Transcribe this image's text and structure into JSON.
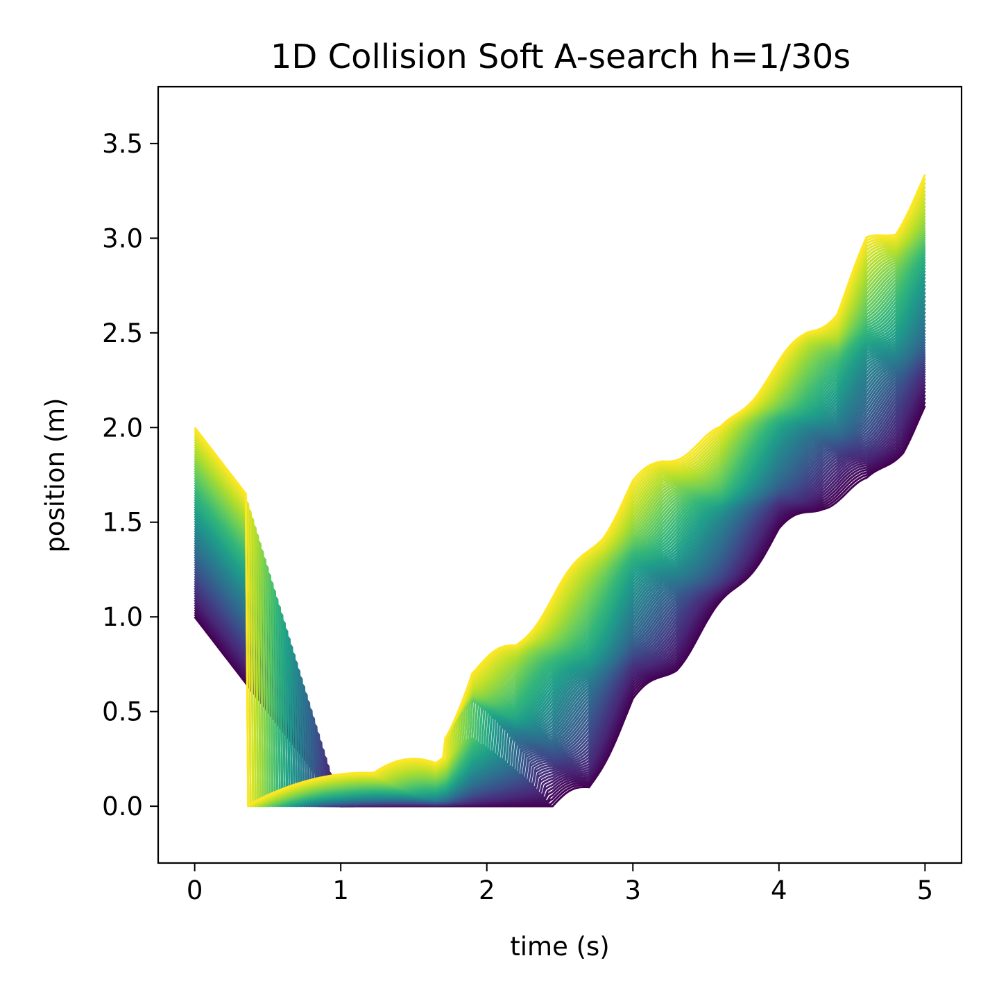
{
  "chart_data": {
    "type": "line",
    "title": "1D Collision Soft A-search h=1/30s",
    "xlabel": "time (s)",
    "ylabel": "position (m)",
    "xlim": [
      -0.25,
      5.25
    ],
    "ylim": [
      -0.3,
      3.8
    ],
    "xticks": [
      0,
      1,
      2,
      3,
      4,
      5
    ],
    "xtick_labels": [
      "0",
      "1",
      "2",
      "3",
      "4",
      "5"
    ],
    "yticks": [
      0.0,
      0.5,
      1.0,
      1.5,
      2.0,
      2.5,
      3.0,
      3.5
    ],
    "ytick_labels": [
      "0.0",
      "0.5",
      "1.0",
      "1.5",
      "2.0",
      "2.5",
      "3.0",
      "3.5"
    ],
    "grid": false,
    "legend": "none",
    "colormap": "viridis",
    "colormap_stops": [
      "#440154",
      "#482878",
      "#3e4989",
      "#31688e",
      "#26828e",
      "#1f9e89",
      "#35b779",
      "#6ece58",
      "#b5de2b",
      "#fde725"
    ],
    "series_count": 80,
    "series_summary": {
      "initial_position_range": [
        1.0,
        2.0
      ],
      "initial_velocity": -1.0,
      "lowest_series": {
        "x": [
          0,
          1.0,
          2.45,
          2.7,
          3.0,
          3.3,
          3.6,
          4.0,
          4.3,
          4.6,
          4.85,
          5.0
        ],
        "y": [
          1.0,
          0.0,
          0.0,
          0.1,
          0.55,
          0.75,
          1.05,
          1.45,
          1.6,
          1.7,
          1.9,
          2.1
        ]
      },
      "highest_series": {
        "x": [
          0,
          1.65,
          1.72,
          1.9,
          2.2,
          2.5,
          2.8,
          3.0,
          3.2,
          3.4,
          3.6,
          3.9,
          4.2,
          4.4,
          4.6,
          4.8,
          5.0
        ],
        "y": [
          2.0,
          0.35,
          0.37,
          0.72,
          0.85,
          1.15,
          1.45,
          1.7,
          1.82,
          1.9,
          1.97,
          2.25,
          2.5,
          2.62,
          2.97,
          3.05,
          3.32
        ]
      }
    }
  }
}
